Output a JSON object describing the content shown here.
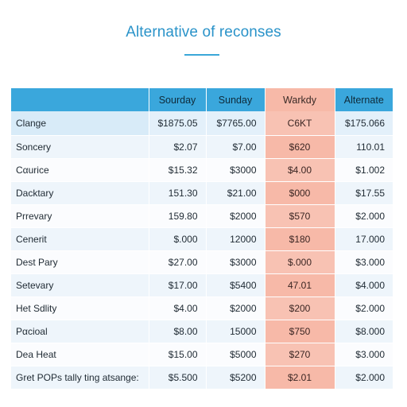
{
  "page": {
    "title": "Alternative of reconses"
  },
  "table": {
    "columns": [
      "",
      "Sourday",
      "Sunday",
      "Warkdy",
      "Alternate"
    ],
    "rows": [
      {
        "label": "Clange",
        "values": [
          "$1875.05",
          "$7765.00",
          "C6KT",
          "$175.066"
        ]
      },
      {
        "label": "Soncery",
        "values": [
          "$2.07",
          "$7.00",
          "$620",
          "110.01"
        ]
      },
      {
        "label": "Cαurice",
        "values": [
          "$15.32",
          "$3000",
          "$4.00",
          "$1.002"
        ]
      },
      {
        "label": "Dacktary",
        "values": [
          "151.30",
          "$21.00",
          "$000",
          "$17.55"
        ]
      },
      {
        "label": "Prrevary",
        "values": [
          "159.80",
          "$2000",
          "$570",
          "$2.000"
        ]
      },
      {
        "label": "Cenerit",
        "values": [
          "$.000",
          "12000",
          "$180",
          "17.000"
        ]
      },
      {
        "label": "Dest Pary",
        "values": [
          "$27.00",
          "$3000",
          "$.000",
          "$3.000"
        ]
      },
      {
        "label": "Setevary",
        "values": [
          "$17.00",
          "$5400",
          "47.01",
          "$4.000"
        ]
      },
      {
        "label": "Het Sdlity",
        "values": [
          "$4.00",
          "$2000",
          "$200",
          "$2.000"
        ]
      },
      {
        "label": "Pαcioal",
        "values": [
          "$8.00",
          "15000",
          "$750",
          "$8.000"
        ]
      },
      {
        "label": "Dea Heat",
        "values": [
          "$15.00",
          "$5000",
          "$270",
          "$3.000"
        ]
      },
      {
        "label": "Gret POPs tally ting atsange:",
        "values": [
          "$5.500",
          "$5200",
          "$2.01",
          "$2.000"
        ]
      }
    ]
  },
  "colors": {
    "accent": "#3aa7dc",
    "title": "#2a93c9",
    "highlight_column": "#f7b9a8",
    "row_alt": "#eef5fb"
  }
}
